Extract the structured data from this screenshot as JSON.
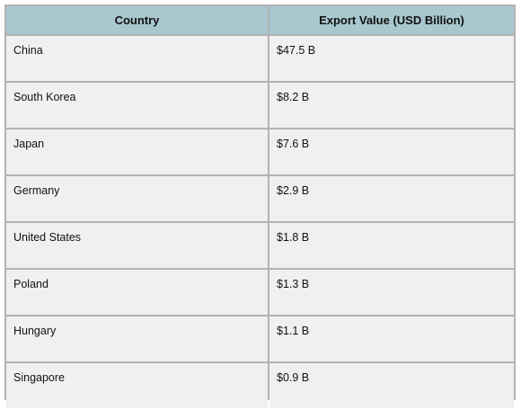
{
  "chart_data": {
    "type": "table",
    "columns": [
      "Country",
      "Export Value (USD Billion)"
    ],
    "rows": [
      [
        "China",
        "$47.5 B"
      ],
      [
        "South Korea",
        "$8.2 B"
      ],
      [
        "Japan",
        "$7.6 B"
      ],
      [
        "Germany",
        "$2.9 B"
      ],
      [
        "United States",
        "$1.8 B"
      ],
      [
        "Poland",
        "$1.3 B"
      ],
      [
        "Hungary",
        "$1.1 B"
      ],
      [
        "Singapore",
        "$0.9 B"
      ]
    ],
    "values": [
      47.5,
      8.2,
      7.6,
      2.9,
      1.8,
      1.3,
      1.1,
      0.9
    ]
  },
  "colors": {
    "header_bg": "#a8c7cf",
    "cell_bg": "#f0f0f0",
    "border": "#b3b3b3"
  }
}
